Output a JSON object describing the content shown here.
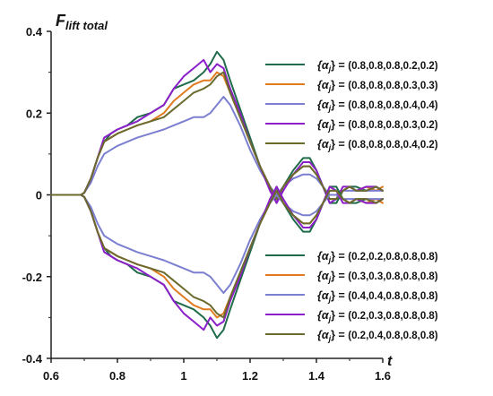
{
  "chart_data": {
    "type": "line",
    "ylabel": "F",
    "ylabel_sub": "lift total",
    "xlabel": "t",
    "xlim": [
      0.6,
      1.6
    ],
    "ylim": [
      -0.4,
      0.4
    ],
    "xticks": [
      "0.6",
      "0.8",
      "1",
      "1.2",
      "1.4",
      "1.6"
    ],
    "yticks": [
      "0.4",
      "0.2",
      "0",
      "-0.2",
      "-0.4"
    ],
    "grid": false,
    "legend_top": "top-right",
    "legend_bottom": "bottom-right",
    "legend_prefix": "{α",
    "legend_prefix_sub": "j",
    "legend_prefix_end": "} = ",
    "series": [
      {
        "name": "(0.8,0.8,0.8,0.2,0.2)",
        "group": "top",
        "color": "#1f6b4a",
        "x": [
          0.6,
          0.69,
          0.7,
          0.72,
          0.74,
          0.76,
          0.78,
          0.8,
          0.83,
          0.86,
          0.9,
          0.94,
          0.97,
          1.0,
          1.03,
          1.06,
          1.08,
          1.1,
          1.12,
          1.14,
          1.17,
          1.2,
          1.23,
          1.26,
          1.28,
          1.3,
          1.33,
          1.36,
          1.38,
          1.4,
          1.42,
          1.44,
          1.46,
          1.48,
          1.5,
          1.52,
          1.55,
          1.58,
          1.6
        ],
        "y": [
          0,
          0,
          0.005,
          0.04,
          0.09,
          0.13,
          0.15,
          0.16,
          0.17,
          0.19,
          0.2,
          0.22,
          0.26,
          0.27,
          0.28,
          0.3,
          0.32,
          0.35,
          0.33,
          0.28,
          0.21,
          0.14,
          0.07,
          0.02,
          -0.02,
          0.02,
          0.06,
          0.09,
          0.09,
          0.06,
          0.02,
          -0.02,
          -0.02,
          0.01,
          0.02,
          0.02,
          0.01,
          0.02,
          0.01
        ]
      },
      {
        "name": "(0.8,0.8,0.8,0.3,0.3)",
        "group": "top",
        "color": "#e07b20",
        "x": [
          0.6,
          0.69,
          0.7,
          0.72,
          0.74,
          0.76,
          0.78,
          0.8,
          0.83,
          0.86,
          0.9,
          0.94,
          0.97,
          1.0,
          1.03,
          1.06,
          1.08,
          1.1,
          1.12,
          1.14,
          1.17,
          1.2,
          1.23,
          1.26,
          1.28,
          1.3,
          1.33,
          1.36,
          1.38,
          1.4,
          1.42,
          1.44,
          1.46,
          1.48,
          1.5,
          1.52,
          1.55,
          1.58,
          1.6
        ],
        "y": [
          0,
          0,
          0.005,
          0.04,
          0.09,
          0.13,
          0.14,
          0.15,
          0.16,
          0.17,
          0.18,
          0.2,
          0.23,
          0.25,
          0.27,
          0.28,
          0.28,
          0.3,
          0.29,
          0.25,
          0.19,
          0.13,
          0.07,
          0.02,
          -0.01,
          0.02,
          0.05,
          0.07,
          0.07,
          0.05,
          0.02,
          -0.01,
          -0.01,
          0.01,
          0.02,
          0.01,
          0.02,
          0.01,
          0.02
        ]
      },
      {
        "name": "(0.8,0.8,0.8,0.4,0.4)",
        "group": "top",
        "color": "#7b7fd0",
        "x": [
          0.6,
          0.69,
          0.7,
          0.72,
          0.74,
          0.76,
          0.78,
          0.8,
          0.83,
          0.86,
          0.9,
          0.94,
          0.97,
          1.0,
          1.03,
          1.06,
          1.08,
          1.1,
          1.12,
          1.14,
          1.17,
          1.2,
          1.23,
          1.26,
          1.28,
          1.3,
          1.33,
          1.36,
          1.38,
          1.4,
          1.42,
          1.44,
          1.46,
          1.48,
          1.5,
          1.52,
          1.55,
          1.58,
          1.6
        ],
        "y": [
          0,
          0,
          0.005,
          0.03,
          0.07,
          0.1,
          0.11,
          0.12,
          0.13,
          0.14,
          0.15,
          0.16,
          0.17,
          0.18,
          0.19,
          0.19,
          0.2,
          0.22,
          0.24,
          0.22,
          0.17,
          0.11,
          0.06,
          0.02,
          0.0,
          0.02,
          0.04,
          0.05,
          0.05,
          0.04,
          0.02,
          0.0,
          0.0,
          0.01,
          0.01,
          0.01,
          0.01,
          0.01,
          0.01
        ]
      },
      {
        "name": "(0.8,0.8,0.8,0.3,0.2)",
        "group": "top",
        "color": "#8b1fc9",
        "x": [
          0.6,
          0.69,
          0.7,
          0.72,
          0.74,
          0.76,
          0.78,
          0.8,
          0.83,
          0.86,
          0.9,
          0.94,
          0.97,
          1.0,
          1.03,
          1.06,
          1.08,
          1.1,
          1.12,
          1.14,
          1.17,
          1.2,
          1.23,
          1.26,
          1.28,
          1.3,
          1.33,
          1.36,
          1.38,
          1.4,
          1.42,
          1.44,
          1.46,
          1.48,
          1.5,
          1.52,
          1.55,
          1.58,
          1.6
        ],
        "y": [
          0,
          0,
          0.005,
          0.04,
          0.09,
          0.14,
          0.15,
          0.16,
          0.17,
          0.18,
          0.2,
          0.22,
          0.26,
          0.29,
          0.31,
          0.33,
          0.3,
          0.32,
          0.31,
          0.26,
          0.2,
          0.13,
          0.07,
          0.01,
          -0.02,
          0.01,
          0.05,
          0.08,
          0.08,
          0.06,
          0.02,
          -0.02,
          -0.01,
          0.02,
          0.02,
          0.01,
          0.02,
          0.02,
          0.01
        ]
      },
      {
        "name": "(0.8,0.8,0.8,0.4,0.2)",
        "group": "top",
        "color": "#6b6a2e",
        "x": [
          0.6,
          0.69,
          0.7,
          0.72,
          0.74,
          0.76,
          0.78,
          0.8,
          0.83,
          0.86,
          0.9,
          0.94,
          0.97,
          1.0,
          1.03,
          1.06,
          1.08,
          1.1,
          1.12,
          1.14,
          1.17,
          1.2,
          1.23,
          1.26,
          1.28,
          1.3,
          1.33,
          1.36,
          1.38,
          1.4,
          1.42,
          1.44,
          1.46,
          1.48,
          1.5,
          1.52,
          1.55,
          1.58,
          1.6
        ],
        "y": [
          0,
          0,
          0.005,
          0.04,
          0.09,
          0.13,
          0.14,
          0.15,
          0.16,
          0.17,
          0.18,
          0.19,
          0.21,
          0.23,
          0.25,
          0.26,
          0.27,
          0.29,
          0.3,
          0.25,
          0.19,
          0.13,
          0.07,
          0.02,
          -0.01,
          0.02,
          0.05,
          0.07,
          0.07,
          0.05,
          0.02,
          -0.01,
          -0.01,
          0.01,
          0.02,
          0.01,
          0.01,
          0.02,
          0.01
        ]
      },
      {
        "name": "(0.2,0.2,0.8,0.8,0.8)",
        "group": "bottom",
        "color": "#1f6b4a",
        "x": [
          0.6,
          0.69,
          0.7,
          0.72,
          0.74,
          0.76,
          0.78,
          0.8,
          0.83,
          0.86,
          0.9,
          0.94,
          0.97,
          1.0,
          1.03,
          1.06,
          1.08,
          1.1,
          1.12,
          1.14,
          1.17,
          1.2,
          1.23,
          1.26,
          1.28,
          1.3,
          1.33,
          1.36,
          1.38,
          1.4,
          1.42,
          1.44,
          1.46,
          1.48,
          1.5,
          1.52,
          1.55,
          1.58,
          1.6
        ],
        "y": [
          0,
          0,
          -0.005,
          -0.04,
          -0.09,
          -0.13,
          -0.15,
          -0.16,
          -0.17,
          -0.19,
          -0.2,
          -0.22,
          -0.26,
          -0.27,
          -0.28,
          -0.3,
          -0.32,
          -0.35,
          -0.33,
          -0.28,
          -0.21,
          -0.14,
          -0.07,
          -0.02,
          0.02,
          -0.02,
          -0.06,
          -0.09,
          -0.09,
          -0.06,
          -0.02,
          0.02,
          0.02,
          -0.01,
          -0.02,
          -0.02,
          -0.01,
          -0.02,
          -0.01
        ]
      },
      {
        "name": "(0.3,0.3,0.8,0.8,0.8)",
        "group": "bottom",
        "color": "#e07b20",
        "x": [
          0.6,
          0.69,
          0.7,
          0.72,
          0.74,
          0.76,
          0.78,
          0.8,
          0.83,
          0.86,
          0.9,
          0.94,
          0.97,
          1.0,
          1.03,
          1.06,
          1.08,
          1.1,
          1.12,
          1.14,
          1.17,
          1.2,
          1.23,
          1.26,
          1.28,
          1.3,
          1.33,
          1.36,
          1.38,
          1.4,
          1.42,
          1.44,
          1.46,
          1.48,
          1.5,
          1.52,
          1.55,
          1.58,
          1.6
        ],
        "y": [
          0,
          0,
          -0.005,
          -0.04,
          -0.09,
          -0.13,
          -0.14,
          -0.15,
          -0.16,
          -0.17,
          -0.18,
          -0.2,
          -0.23,
          -0.25,
          -0.27,
          -0.28,
          -0.28,
          -0.3,
          -0.29,
          -0.25,
          -0.19,
          -0.13,
          -0.07,
          -0.02,
          0.01,
          -0.02,
          -0.05,
          -0.07,
          -0.07,
          -0.05,
          -0.02,
          0.01,
          0.01,
          -0.01,
          -0.02,
          -0.01,
          -0.02,
          -0.01,
          -0.02
        ]
      },
      {
        "name": "(0.4,0.4,0.8,0.8,0.8)",
        "group": "bottom",
        "color": "#7b7fd0",
        "x": [
          0.6,
          0.69,
          0.7,
          0.72,
          0.74,
          0.76,
          0.78,
          0.8,
          0.83,
          0.86,
          0.9,
          0.94,
          0.97,
          1.0,
          1.03,
          1.06,
          1.08,
          1.1,
          1.12,
          1.14,
          1.17,
          1.2,
          1.23,
          1.26,
          1.28,
          1.3,
          1.33,
          1.36,
          1.38,
          1.4,
          1.42,
          1.44,
          1.46,
          1.48,
          1.5,
          1.52,
          1.55,
          1.58,
          1.6
        ],
        "y": [
          0,
          0,
          -0.005,
          -0.03,
          -0.07,
          -0.1,
          -0.11,
          -0.12,
          -0.13,
          -0.14,
          -0.15,
          -0.16,
          -0.17,
          -0.18,
          -0.19,
          -0.19,
          -0.2,
          -0.22,
          -0.24,
          -0.22,
          -0.17,
          -0.11,
          -0.06,
          -0.02,
          0.0,
          -0.02,
          -0.04,
          -0.05,
          -0.05,
          -0.04,
          -0.02,
          0.0,
          0.0,
          -0.01,
          -0.01,
          -0.01,
          -0.01,
          -0.01,
          -0.01
        ]
      },
      {
        "name": "(0.2,0.3,0.8,0.8,0.8)",
        "group": "bottom",
        "color": "#8b1fc9",
        "x": [
          0.6,
          0.69,
          0.7,
          0.72,
          0.74,
          0.76,
          0.78,
          0.8,
          0.83,
          0.86,
          0.9,
          0.94,
          0.97,
          1.0,
          1.03,
          1.06,
          1.08,
          1.1,
          1.12,
          1.14,
          1.17,
          1.2,
          1.23,
          1.26,
          1.28,
          1.3,
          1.33,
          1.36,
          1.38,
          1.4,
          1.42,
          1.44,
          1.46,
          1.48,
          1.5,
          1.52,
          1.55,
          1.58,
          1.6
        ],
        "y": [
          0,
          0,
          -0.005,
          -0.04,
          -0.09,
          -0.14,
          -0.15,
          -0.16,
          -0.17,
          -0.18,
          -0.2,
          -0.22,
          -0.26,
          -0.29,
          -0.31,
          -0.33,
          -0.3,
          -0.32,
          -0.31,
          -0.26,
          -0.2,
          -0.13,
          -0.07,
          -0.01,
          0.02,
          -0.01,
          -0.05,
          -0.08,
          -0.08,
          -0.06,
          -0.02,
          0.02,
          0.01,
          -0.02,
          -0.02,
          -0.01,
          -0.02,
          -0.02,
          -0.01
        ]
      },
      {
        "name": "(0.2,0.4,0.8,0.8,0.8)",
        "group": "bottom",
        "color": "#6b6a2e",
        "x": [
          0.6,
          0.69,
          0.7,
          0.72,
          0.74,
          0.76,
          0.78,
          0.8,
          0.83,
          0.86,
          0.9,
          0.94,
          0.97,
          1.0,
          1.03,
          1.06,
          1.08,
          1.1,
          1.12,
          1.14,
          1.17,
          1.2,
          1.23,
          1.26,
          1.28,
          1.3,
          1.33,
          1.36,
          1.38,
          1.4,
          1.42,
          1.44,
          1.46,
          1.48,
          1.5,
          1.52,
          1.55,
          1.58,
          1.6
        ],
        "y": [
          0,
          0,
          -0.005,
          -0.04,
          -0.09,
          -0.13,
          -0.14,
          -0.15,
          -0.16,
          -0.17,
          -0.18,
          -0.19,
          -0.21,
          -0.23,
          -0.25,
          -0.26,
          -0.27,
          -0.29,
          -0.3,
          -0.25,
          -0.19,
          -0.13,
          -0.07,
          -0.02,
          0.01,
          -0.02,
          -0.05,
          -0.07,
          -0.07,
          -0.05,
          -0.02,
          0.01,
          0.01,
          -0.01,
          -0.02,
          -0.01,
          -0.01,
          -0.02,
          -0.01
        ]
      }
    ]
  }
}
